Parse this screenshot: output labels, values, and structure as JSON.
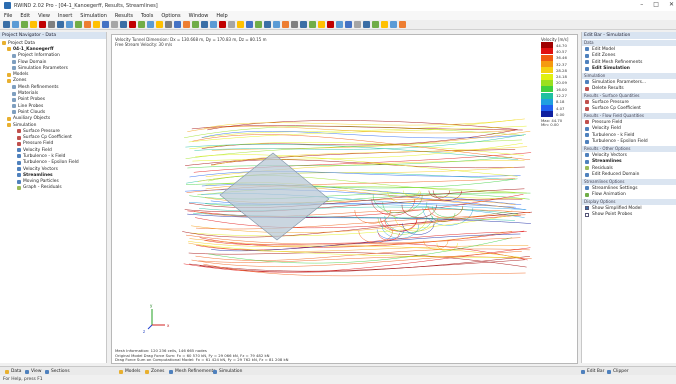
{
  "window": {
    "title": "RWIND 2.02 Pro - [04-1_Kanoegerff, Results, Streamlines]",
    "controls": [
      "–",
      "□",
      "✕"
    ]
  },
  "menu": [
    "File",
    "Edit",
    "View",
    "Insert",
    "Simulation",
    "Results",
    "Tools",
    "Options",
    "Window",
    "Help"
  ],
  "toolbar_colors": [
    "#3a6ea5",
    "#5b9bd5",
    "#70ad47",
    "#ffc000",
    "#c00000",
    "#7f7f7f",
    "#3a6ea5",
    "#5b9bd5",
    "#70ad47",
    "#ed7d31",
    "#ffc000",
    "#4472c4",
    "#a5a5a5",
    "#3a6ea5",
    "#c00000",
    "#70ad47",
    "#5b9bd5",
    "#ffc000",
    "#7f7f7f",
    "#4472c4",
    "#ed7d31",
    "#70ad47",
    "#3a6ea5",
    "#5b9bd5",
    "#c00000",
    "#a5a5a5",
    "#ffc000",
    "#4472c4",
    "#70ad47",
    "#3a6ea5",
    "#5b9bd5",
    "#ed7d31",
    "#7f7f7f",
    "#3a6ea5",
    "#70ad47",
    "#ffc000",
    "#c00000",
    "#5b9bd5",
    "#4472c4",
    "#a5a5a5",
    "#3a6ea5",
    "#70ad47",
    "#ffc000",
    "#5b9bd5",
    "#ed7d31"
  ],
  "navigator": {
    "header": "Project Navigator - Data",
    "items": [
      {
        "label": "Project Data",
        "indent": 0,
        "color": "#e8b030",
        "bold": false
      },
      {
        "label": "04-1_Kanoegerff",
        "indent": 1,
        "color": "#e8b030",
        "bold": true
      },
      {
        "label": "Project Information",
        "indent": 2,
        "color": "#7f9fbf",
        "bold": false
      },
      {
        "label": "Flow Domain",
        "indent": 2,
        "color": "#7f9fbf",
        "bold": false
      },
      {
        "label": "Simulation Parameters",
        "indent": 2,
        "color": "#7f9fbf",
        "bold": false
      },
      {
        "label": "Models",
        "indent": 1,
        "color": "#e8b030",
        "bold": false
      },
      {
        "label": "Zones",
        "indent": 1,
        "color": "#e8b030",
        "bold": false
      },
      {
        "label": "Mesh Refinements",
        "indent": 2,
        "color": "#7f9fbf",
        "bold": false
      },
      {
        "label": "Materials",
        "indent": 2,
        "color": "#7f9fbf",
        "bold": false
      },
      {
        "label": "Point Probes",
        "indent": 2,
        "color": "#7f9fbf",
        "bold": false
      },
      {
        "label": "Line Probes",
        "indent": 2,
        "color": "#7f9fbf",
        "bold": false
      },
      {
        "label": "Point Clouds",
        "indent": 2,
        "color": "#7f9fbf",
        "bold": false
      },
      {
        "label": "Auxiliary Objects",
        "indent": 1,
        "color": "#e8b030",
        "bold": false
      },
      {
        "label": "Simulation",
        "indent": 1,
        "color": "#e8b030",
        "bold": false
      },
      {
        "label": "Surface Pressure",
        "indent": 3,
        "color": "#c0504d",
        "bold": false
      },
      {
        "label": "Surface Cp Coefficient",
        "indent": 3,
        "color": "#c0504d",
        "bold": false
      },
      {
        "label": "Pressure Field",
        "indent": 3,
        "color": "#c0504d",
        "bold": false
      },
      {
        "label": "Velocity Field",
        "indent": 3,
        "color": "#4f81bd",
        "bold": false
      },
      {
        "label": "Turbulence - k Field",
        "indent": 3,
        "color": "#4f81bd",
        "bold": false
      },
      {
        "label": "Turbulence - Epsilon Field",
        "indent": 3,
        "color": "#4f81bd",
        "bold": false
      },
      {
        "label": "Velocity Vectors",
        "indent": 3,
        "color": "#4f81bd",
        "bold": false
      },
      {
        "label": "Streamlines",
        "indent": 3,
        "color": "#4f81bd",
        "bold": true
      },
      {
        "label": "Moving Particles",
        "indent": 3,
        "color": "#4f81bd",
        "bold": false
      },
      {
        "label": "Graph - Residuals",
        "indent": 3,
        "color": "#9bbb59",
        "bold": false
      }
    ]
  },
  "viewport": {
    "info_line1": "Velocity Tunnel Dimension: Dx = 130.668 m, Dy = 170.83 m, Dz = 80.15 m",
    "info_line2": "Free Stream Velocity: 30 m/s",
    "legend_title": "Velocity [m/s]",
    "legend_stats": [
      "Max: 44.70",
      "Min: 0.00"
    ],
    "footer": [
      "Mesh Information: 120 236 cells, 146 665 nodes",
      "Original Model Drag Force Sum: Fx = 60 570 kN, Fy = 29 066 kN, Fz = 79 482 kN",
      "Drag Force Sum on Computational Model: Fx = 61 424 kN, Fy = 29 762 kN, Fz = 81 208 kN"
    ],
    "axes": {
      "y": "y",
      "x": "x",
      "z": "z"
    }
  },
  "legend": [
    {
      "value": "44.70",
      "color": "#a00000"
    },
    {
      "value": "40.57",
      "color": "#e01010"
    },
    {
      "value": "36.46",
      "color": "#f05a10"
    },
    {
      "value": "32.37",
      "color": "#f59a10"
    },
    {
      "value": "28.28",
      "color": "#f5d010"
    },
    {
      "value": "24.18",
      "color": "#e0f010"
    },
    {
      "value": "20.09",
      "color": "#9ae020"
    },
    {
      "value": "16.00",
      "color": "#40d040"
    },
    {
      "value": "12.27",
      "color": "#20c0a0"
    },
    {
      "value": "8.18",
      "color": "#20a0e0"
    },
    {
      "value": "4.07",
      "color": "#2060f0"
    },
    {
      "value": "0.00",
      "color": "#1020a0"
    }
  ],
  "editbar": {
    "header": "Edit Bar - Simulation",
    "sections": [
      {
        "title": "Data",
        "items": [
          {
            "label": "Edit Model",
            "color": "#4f81bd",
            "bold": false
          },
          {
            "label": "Edit Zones",
            "color": "#4f81bd",
            "bold": false
          },
          {
            "label": "Edit Mesh Refinements",
            "color": "#4f81bd",
            "bold": false
          },
          {
            "label": "Edit Simulation",
            "color": "#4f81bd",
            "bold": true
          }
        ]
      },
      {
        "title": "Simulation",
        "items": [
          {
            "label": "Simulation Parameters...",
            "color": "#4f81bd",
            "bold": false
          },
          {
            "label": "Delete Results",
            "color": "#c0504d",
            "bold": false
          }
        ]
      },
      {
        "title": "Results - Surface Quantities",
        "items": [
          {
            "label": "Surface Pressure",
            "color": "#c0504d",
            "bold": false
          },
          {
            "label": "Surface Cp Coefficient",
            "color": "#c0504d",
            "bold": false
          }
        ]
      },
      {
        "title": "Results - Flow Field Quantities",
        "items": [
          {
            "label": "Pressure Field",
            "color": "#c0504d",
            "bold": false
          },
          {
            "label": "Velocity Field",
            "color": "#4f81bd",
            "bold": false
          },
          {
            "label": "Turbulence - k Field",
            "color": "#4f81bd",
            "bold": false
          },
          {
            "label": "Turbulence - Epsilon Field",
            "color": "#4f81bd",
            "bold": false
          }
        ]
      },
      {
        "title": "Results - Other Options",
        "items": [
          {
            "label": "Velocity Vectors",
            "color": "#4f81bd",
            "bold": false
          },
          {
            "label": "Streamlines",
            "color": "#4f81bd",
            "bold": true
          },
          {
            "label": "Residuals",
            "color": "#9bbb59",
            "bold": false
          },
          {
            "label": "Edit Reduced Domain",
            "color": "#4f81bd",
            "bold": false
          }
        ]
      },
      {
        "title": "Streamlines Options",
        "items": [
          {
            "label": "Streamlines Settings",
            "color": "#4f81bd",
            "bold": false
          },
          {
            "label": "Flow Animation",
            "color": "#70ad47",
            "bold": false
          }
        ]
      }
    ],
    "display_title": "Display Options",
    "display_options": [
      {
        "label": "Show Simplified Model",
        "checked": true
      },
      {
        "label": "Show Point Probes",
        "checked": false
      }
    ]
  },
  "bottom_tabs": {
    "left": [
      {
        "label": "Data",
        "color": "#e8b030"
      },
      {
        "label": "View",
        "color": "#4f81bd"
      },
      {
        "label": "Sections",
        "color": "#4f81bd"
      }
    ],
    "middle": [
      {
        "label": "Models",
        "color": "#e8b030"
      },
      {
        "label": "Zones",
        "color": "#e8b030"
      },
      {
        "label": "Mesh Refinements",
        "color": "#4f81bd"
      },
      {
        "label": "Simulation",
        "color": "#4f81bd"
      }
    ],
    "right": [
      {
        "label": "Edit Bar",
        "color": "#4f81bd"
      },
      {
        "label": "Clipper",
        "color": "#4f81bd"
      }
    ]
  },
  "status": "For Help, press F1"
}
